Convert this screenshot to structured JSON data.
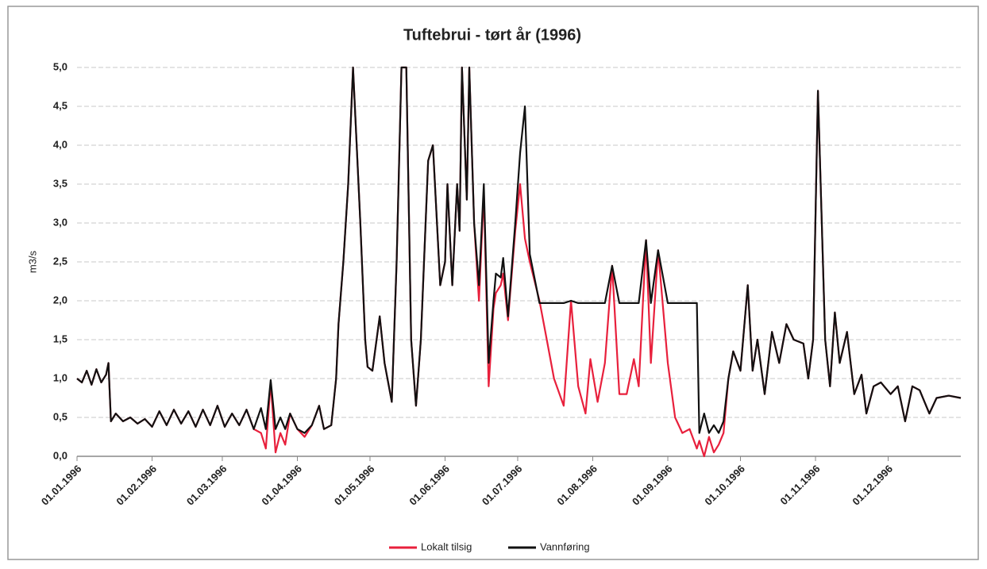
{
  "chart_data": {
    "type": "line",
    "title": "Tuftebrui - tørt år (1996)",
    "ylabel": "m3/s",
    "x": [
      "01.01.1996",
      "03.01.1996",
      "05.01.1996",
      "07.01.1996",
      "09.01.1996",
      "11.01.1996",
      "13.01.1996",
      "14.01.1996",
      "15.01.1996",
      "17.01.1996",
      "20.01.1996",
      "23.01.1996",
      "26.01.1996",
      "29.01.1996",
      "01.02.1996",
      "04.02.1996",
      "07.02.1996",
      "10.02.1996",
      "13.02.1996",
      "16.02.1996",
      "19.02.1996",
      "22.02.1996",
      "25.02.1996",
      "28.02.1996",
      "02.03.1996",
      "05.03.1996",
      "08.03.1996",
      "11.03.1996",
      "14.03.1996",
      "17.03.1996",
      "19.03.1996",
      "21.03.1996",
      "23.03.1996",
      "25.03.1996",
      "27.03.1996",
      "29.03.1996",
      "01.04.1996",
      "04.04.1996",
      "07.04.1996",
      "10.04.1996",
      "12.04.1996",
      "15.04.1996",
      "17.04.1996",
      "18.04.1996",
      "20.04.1996",
      "22.04.1996",
      "24.04.1996",
      "27.04.1996",
      "29.04.1996",
      "30.04.1996",
      "02.05.1996",
      "05.05.1996",
      "07.05.1996",
      "10.05.1996",
      "12.05.1996",
      "14.05.1996",
      "16.05.1996",
      "18.05.1996",
      "20.05.1996",
      "22.05.1996",
      "25.05.1996",
      "27.05.1996",
      "30.05.1996",
      "01.06.1996",
      "02.06.1996",
      "04.06.1996",
      "06.06.1996",
      "07.06.1996",
      "08.06.1996",
      "10.06.1996",
      "11.06.1996",
      "13.06.1996",
      "15.06.1996",
      "17.06.1996",
      "19.06.1996",
      "21.06.1996",
      "22.06.1996",
      "24.06.1996",
      "25.06.1996",
      "27.06.1996",
      "30.06.1996",
      "02.07.1996",
      "04.07.1996",
      "06.07.1996",
      "10.07.1996",
      "13.07.1996",
      "16.07.1996",
      "20.07.1996",
      "23.07.1996",
      "26.07.1996",
      "29.07.1996",
      "31.07.1996",
      "03.08.1996",
      "06.08.1996",
      "09.08.1996",
      "12.08.1996",
      "15.08.1996",
      "18.08.1996",
      "20.08.1996",
      "23.08.1996",
      "25.08.1996",
      "28.08.1996",
      "01.09.1996",
      "04.09.1996",
      "07.09.1996",
      "10.09.1996",
      "13.09.1996",
      "14.09.1996",
      "16.09.1996",
      "18.09.1996",
      "20.09.1996",
      "22.09.1996",
      "24.09.1996",
      "26.09.1996",
      "28.09.1996",
      "01.10.1996",
      "04.10.1996",
      "06.10.1996",
      "08.10.1996",
      "11.10.1996",
      "14.10.1996",
      "17.10.1996",
      "20.10.1996",
      "23.10.1996",
      "27.10.1996",
      "29.10.1996",
      "31.10.1996",
      "02.11.1996",
      "05.11.1996",
      "07.11.1996",
      "09.11.1996",
      "11.11.1996",
      "14.11.1996",
      "17.11.1996",
      "20.11.1996",
      "22.11.1996",
      "25.11.1996",
      "28.11.1996",
      "02.12.1996",
      "05.12.1996",
      "08.12.1996",
      "11.12.1996",
      "14.12.1996",
      "18.12.1996",
      "21.12.1996",
      "26.12.1996",
      "31.12.1996"
    ],
    "series": [
      {
        "name": "Lokalt tilsig",
        "color": "#e8203c",
        "values": [
          1.0,
          0.95,
          1.1,
          0.92,
          1.12,
          0.95,
          1.05,
          1.2,
          0.45,
          0.55,
          0.45,
          0.5,
          0.42,
          0.48,
          0.38,
          0.58,
          0.4,
          0.6,
          0.42,
          0.58,
          0.38,
          0.6,
          0.4,
          0.65,
          0.38,
          0.55,
          0.4,
          0.6,
          0.35,
          0.3,
          0.1,
          0.95,
          0.05,
          0.3,
          0.15,
          0.55,
          0.35,
          0.25,
          0.4,
          0.65,
          0.35,
          0.4,
          1.0,
          1.7,
          2.5,
          3.5,
          5.0,
          3.0,
          1.5,
          1.15,
          1.1,
          1.8,
          1.2,
          0.7,
          2.5,
          5.0,
          5.0,
          1.5,
          0.65,
          1.5,
          3.8,
          4.0,
          2.2,
          2.5,
          3.5,
          2.2,
          3.5,
          2.9,
          5.0,
          3.3,
          5.0,
          3.0,
          2.0,
          3.4,
          0.9,
          1.9,
          2.1,
          2.2,
          2.35,
          1.75,
          2.9,
          3.5,
          2.8,
          2.5,
          2.0,
          1.5,
          1.0,
          0.65,
          2.0,
          0.9,
          0.55,
          1.25,
          0.7,
          1.2,
          2.45,
          0.8,
          0.8,
          1.25,
          0.9,
          2.78,
          1.2,
          2.65,
          1.2,
          0.5,
          0.3,
          0.35,
          0.1,
          0.2,
          0.0,
          0.25,
          0.05,
          0.15,
          0.3,
          1.0,
          1.35,
          1.1,
          2.2,
          1.1,
          1.5,
          0.8,
          1.6,
          1.2,
          1.7,
          1.5,
          1.45,
          1.0,
          1.5,
          4.7,
          1.5,
          0.9,
          1.85,
          1.2,
          1.6,
          0.8,
          1.05,
          0.55,
          0.9,
          0.95,
          0.8,
          0.9,
          0.45,
          0.9,
          0.85,
          0.55,
          0.75,
          0.78,
          0.75
        ]
      },
      {
        "name": "Vannføring",
        "color": "#111111",
        "values": [
          1.0,
          0.95,
          1.1,
          0.92,
          1.12,
          0.95,
          1.05,
          1.2,
          0.45,
          0.55,
          0.45,
          0.5,
          0.42,
          0.48,
          0.38,
          0.58,
          0.4,
          0.6,
          0.42,
          0.58,
          0.38,
          0.6,
          0.4,
          0.65,
          0.38,
          0.55,
          0.4,
          0.6,
          0.35,
          0.62,
          0.35,
          0.98,
          0.35,
          0.5,
          0.35,
          0.55,
          0.35,
          0.3,
          0.4,
          0.65,
          0.35,
          0.4,
          1.0,
          1.7,
          2.5,
          3.5,
          5.0,
          3.0,
          1.5,
          1.15,
          1.1,
          1.8,
          1.2,
          0.7,
          2.5,
          5.0,
          5.0,
          1.5,
          0.65,
          1.5,
          3.8,
          4.0,
          2.2,
          2.5,
          3.5,
          2.2,
          3.5,
          2.9,
          5.0,
          3.3,
          5.0,
          3.0,
          2.2,
          3.5,
          1.2,
          2.0,
          2.35,
          2.3,
          2.55,
          1.8,
          3.0,
          3.9,
          4.5,
          2.6,
          1.97,
          1.97,
          1.97,
          1.97,
          2.0,
          1.97,
          1.97,
          1.97,
          1.97,
          1.97,
          2.45,
          1.97,
          1.97,
          1.97,
          1.97,
          2.78,
          1.97,
          2.65,
          1.97,
          1.97,
          1.97,
          1.97,
          1.97,
          0.3,
          0.55,
          0.3,
          0.4,
          0.3,
          0.45,
          1.0,
          1.35,
          1.1,
          2.2,
          1.1,
          1.5,
          0.8,
          1.6,
          1.2,
          1.7,
          1.5,
          1.45,
          1.0,
          1.5,
          4.7,
          1.5,
          0.9,
          1.85,
          1.2,
          1.6,
          0.8,
          1.05,
          0.55,
          0.9,
          0.95,
          0.8,
          0.9,
          0.45,
          0.9,
          0.85,
          0.55,
          0.75,
          0.78,
          0.75
        ]
      }
    ],
    "xlim": [
      "01.01.1996",
      "31.12.1996"
    ],
    "xticks": [
      "01.01.1996",
      "01.02.1996",
      "01.03.1996",
      "01.04.1996",
      "01.05.1996",
      "01.06.1996",
      "01.07.1996",
      "01.08.1996",
      "01.09.1996",
      "01.10.1996",
      "01.11.1996",
      "01.12.1996"
    ],
    "ylim": [
      0,
      5
    ],
    "yticks": [
      {
        "value": 0,
        "label": "0,0"
      },
      {
        "value": 0.5,
        "label": "0,5"
      },
      {
        "value": 1,
        "label": "1,0"
      },
      {
        "value": 1.5,
        "label": "1,5"
      },
      {
        "value": 2,
        "label": "2,0"
      },
      {
        "value": 2.5,
        "label": "2,5"
      },
      {
        "value": 3,
        "label": "3,0"
      },
      {
        "value": 3.5,
        "label": "3,5"
      },
      {
        "value": 4,
        "label": "4,0"
      },
      {
        "value": 4.5,
        "label": "4,5"
      },
      {
        "value": 5,
        "label": "5,0"
      }
    ],
    "grid": true,
    "legend": "bottom"
  }
}
